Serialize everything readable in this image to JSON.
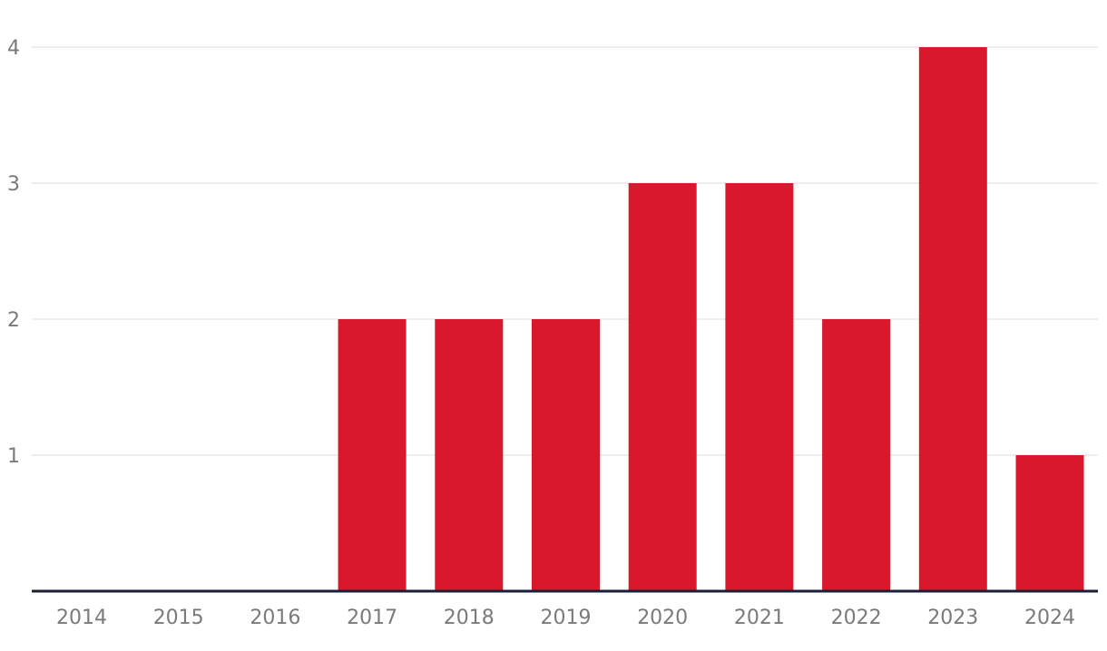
{
  "chart_data": {
    "type": "bar",
    "categories": [
      "2014",
      "2015",
      "2016",
      "2017",
      "2018",
      "2019",
      "2020",
      "2021",
      "2022",
      "2023",
      "2024"
    ],
    "values": [
      0,
      0,
      0,
      2,
      2,
      2,
      3,
      3,
      2,
      4,
      1
    ],
    "y_ticks": [
      1,
      2,
      3,
      4
    ],
    "ylim": [
      0,
      4
    ],
    "grid": true,
    "bar_color": "#d9182d",
    "baseline_color": "#1a1f36",
    "gridline_color": "#dcdcdc",
    "tick_label_color": "#7a7a7a"
  }
}
